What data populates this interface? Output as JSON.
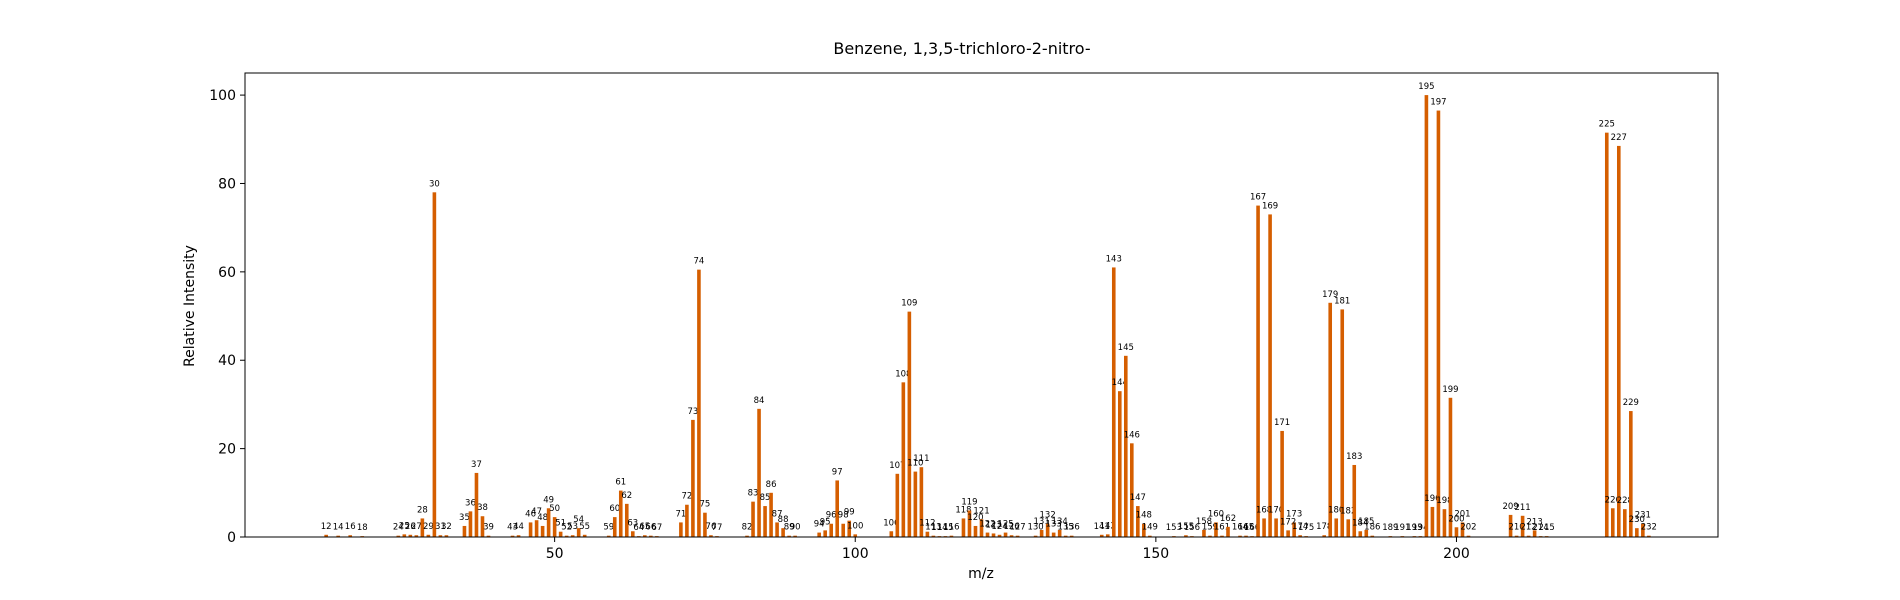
{
  "chart_data": {
    "type": "bar",
    "title": "Benzene, 1,3,5-trichloro-2-nitro-",
    "xlabel": "m/z",
    "ylabel": "Relative Intensity",
    "xlim": [
      -1.5,
      243.5
    ],
    "ylim": [
      0,
      105
    ],
    "xticks": [
      50,
      100,
      150,
      200
    ],
    "yticks": [
      0,
      20,
      40,
      60,
      80,
      100
    ],
    "grid": false,
    "bar_color": "#d55e00",
    "points": [
      {
        "x": 12,
        "y": 0.5
      },
      {
        "x": 14,
        "y": 0.3
      },
      {
        "x": 16,
        "y": 0.4
      },
      {
        "x": 18,
        "y": 0.2
      },
      {
        "x": 24,
        "y": 0.3
      },
      {
        "x": 25,
        "y": 0.6
      },
      {
        "x": 26,
        "y": 0.5
      },
      {
        "x": 27,
        "y": 0.4
      },
      {
        "x": 28,
        "y": 4.2
      },
      {
        "x": 29,
        "y": 0.5
      },
      {
        "x": 30,
        "y": 78
      },
      {
        "x": 31,
        "y": 0.4
      },
      {
        "x": 32,
        "y": 0.4
      },
      {
        "x": 35,
        "y": 2.5
      },
      {
        "x": 36,
        "y": 5.8
      },
      {
        "x": 37,
        "y": 14.5
      },
      {
        "x": 38,
        "y": 4.7
      },
      {
        "x": 39,
        "y": 0.3
      },
      {
        "x": 43,
        "y": 0.3
      },
      {
        "x": 44,
        "y": 0.4
      },
      {
        "x": 46,
        "y": 3.3
      },
      {
        "x": 47,
        "y": 3.8
      },
      {
        "x": 48,
        "y": 2.5
      },
      {
        "x": 49,
        "y": 6.5
      },
      {
        "x": 50,
        "y": 4.5
      },
      {
        "x": 51,
        "y": 1.2
      },
      {
        "x": 52,
        "y": 0.3
      },
      {
        "x": 53,
        "y": 0.4
      },
      {
        "x": 54,
        "y": 2.0
      },
      {
        "x": 55,
        "y": 0.5
      },
      {
        "x": 59,
        "y": 0.3
      },
      {
        "x": 60,
        "y": 4.5
      },
      {
        "x": 61,
        "y": 10.5
      },
      {
        "x": 62,
        "y": 7.5
      },
      {
        "x": 63,
        "y": 1.3
      },
      {
        "x": 64,
        "y": 0.2
      },
      {
        "x": 65,
        "y": 0.4
      },
      {
        "x": 66,
        "y": 0.3
      },
      {
        "x": 67,
        "y": 0.2
      },
      {
        "x": 71,
        "y": 3.3
      },
      {
        "x": 72,
        "y": 7.3
      },
      {
        "x": 73,
        "y": 26.5
      },
      {
        "x": 74,
        "y": 60.5
      },
      {
        "x": 75,
        "y": 5.5
      },
      {
        "x": 76,
        "y": 0.4
      },
      {
        "x": 77,
        "y": 0.2
      },
      {
        "x": 82,
        "y": 0.3
      },
      {
        "x": 83,
        "y": 8.0
      },
      {
        "x": 84,
        "y": 29
      },
      {
        "x": 85,
        "y": 7.0
      },
      {
        "x": 86,
        "y": 10.0
      },
      {
        "x": 87,
        "y": 3.3
      },
      {
        "x": 88,
        "y": 2.0
      },
      {
        "x": 89,
        "y": 0.3
      },
      {
        "x": 90,
        "y": 0.3
      },
      {
        "x": 94,
        "y": 1.0
      },
      {
        "x": 95,
        "y": 1.5
      },
      {
        "x": 96,
        "y": 3.0
      },
      {
        "x": 97,
        "y": 12.8
      },
      {
        "x": 98,
        "y": 3.0
      },
      {
        "x": 99,
        "y": 3.7
      },
      {
        "x": 100,
        "y": 0.6
      },
      {
        "x": 106,
        "y": 1.3
      },
      {
        "x": 107,
        "y": 14.3
      },
      {
        "x": 108,
        "y": 35
      },
      {
        "x": 109,
        "y": 51
      },
      {
        "x": 110,
        "y": 14.8
      },
      {
        "x": 111,
        "y": 15.8
      },
      {
        "x": 112,
        "y": 1.2
      },
      {
        "x": 113,
        "y": 0.3
      },
      {
        "x": 114,
        "y": 0.2
      },
      {
        "x": 115,
        "y": 0.2
      },
      {
        "x": 116,
        "y": 0.3
      },
      {
        "x": 118,
        "y": 4.2
      },
      {
        "x": 119,
        "y": 6.0
      },
      {
        "x": 120,
        "y": 2.5
      },
      {
        "x": 121,
        "y": 4.0
      },
      {
        "x": 122,
        "y": 1.0
      },
      {
        "x": 123,
        "y": 0.8
      },
      {
        "x": 124,
        "y": 0.5
      },
      {
        "x": 125,
        "y": 1.0
      },
      {
        "x": 126,
        "y": 0.4
      },
      {
        "x": 127,
        "y": 0.3
      },
      {
        "x": 130,
        "y": 0.3
      },
      {
        "x": 131,
        "y": 1.6
      },
      {
        "x": 132,
        "y": 3.0
      },
      {
        "x": 133,
        "y": 1.0
      },
      {
        "x": 134,
        "y": 1.6
      },
      {
        "x": 135,
        "y": 0.3
      },
      {
        "x": 136,
        "y": 0.3
      },
      {
        "x": 141,
        "y": 0.5
      },
      {
        "x": 142,
        "y": 0.6
      },
      {
        "x": 143,
        "y": 61
      },
      {
        "x": 144,
        "y": 33
      },
      {
        "x": 145,
        "y": 41
      },
      {
        "x": 146,
        "y": 21.2
      },
      {
        "x": 147,
        "y": 7.0
      },
      {
        "x": 148,
        "y": 3.0
      },
      {
        "x": 149,
        "y": 0.3
      },
      {
        "x": 153,
        "y": 0.2
      },
      {
        "x": 155,
        "y": 0.4
      },
      {
        "x": 156,
        "y": 0.2
      },
      {
        "x": 158,
        "y": 1.6
      },
      {
        "x": 159,
        "y": 0.3
      },
      {
        "x": 160,
        "y": 3.3
      },
      {
        "x": 161,
        "y": 0.3
      },
      {
        "x": 162,
        "y": 2.3
      },
      {
        "x": 164,
        "y": 0.3
      },
      {
        "x": 165,
        "y": 0.3
      },
      {
        "x": 166,
        "y": 0.2
      },
      {
        "x": 167,
        "y": 75
      },
      {
        "x": 168,
        "y": 4.2
      },
      {
        "x": 169,
        "y": 73
      },
      {
        "x": 170,
        "y": 4.2
      },
      {
        "x": 171,
        "y": 24
      },
      {
        "x": 172,
        "y": 1.5
      },
      {
        "x": 173,
        "y": 3.3
      },
      {
        "x": 174,
        "y": 0.4
      },
      {
        "x": 175,
        "y": 0.2
      },
      {
        "x": 178,
        "y": 0.4
      },
      {
        "x": 179,
        "y": 53
      },
      {
        "x": 180,
        "y": 4.2
      },
      {
        "x": 181,
        "y": 51.5
      },
      {
        "x": 182,
        "y": 4.0
      },
      {
        "x": 183,
        "y": 16.3
      },
      {
        "x": 184,
        "y": 1.3
      },
      {
        "x": 185,
        "y": 1.6
      },
      {
        "x": 186,
        "y": 0.3
      },
      {
        "x": 189,
        "y": 0.2
      },
      {
        "x": 191,
        "y": 0.2
      },
      {
        "x": 193,
        "y": 0.2
      },
      {
        "x": 194,
        "y": 0.2
      },
      {
        "x": 195,
        "y": 100
      },
      {
        "x": 196,
        "y": 6.8
      },
      {
        "x": 197,
        "y": 96.5
      },
      {
        "x": 198,
        "y": 6.3
      },
      {
        "x": 199,
        "y": 31.5
      },
      {
        "x": 200,
        "y": 2.2
      },
      {
        "x": 201,
        "y": 3.3
      },
      {
        "x": 202,
        "y": 0.3
      },
      {
        "x": 209,
        "y": 5.0
      },
      {
        "x": 210,
        "y": 0.3
      },
      {
        "x": 211,
        "y": 4.8
      },
      {
        "x": 212,
        "y": 0.3
      },
      {
        "x": 213,
        "y": 1.5
      },
      {
        "x": 214,
        "y": 0.2
      },
      {
        "x": 215,
        "y": 0.2
      },
      {
        "x": 225,
        "y": 91.5
      },
      {
        "x": 226,
        "y": 6.5
      },
      {
        "x": 227,
        "y": 88.5
      },
      {
        "x": 228,
        "y": 6.3
      },
      {
        "x": 229,
        "y": 28.5
      },
      {
        "x": 230,
        "y": 2.0
      },
      {
        "x": 231,
        "y": 3.0
      },
      {
        "x": 232,
        "y": 0.3
      }
    ]
  }
}
